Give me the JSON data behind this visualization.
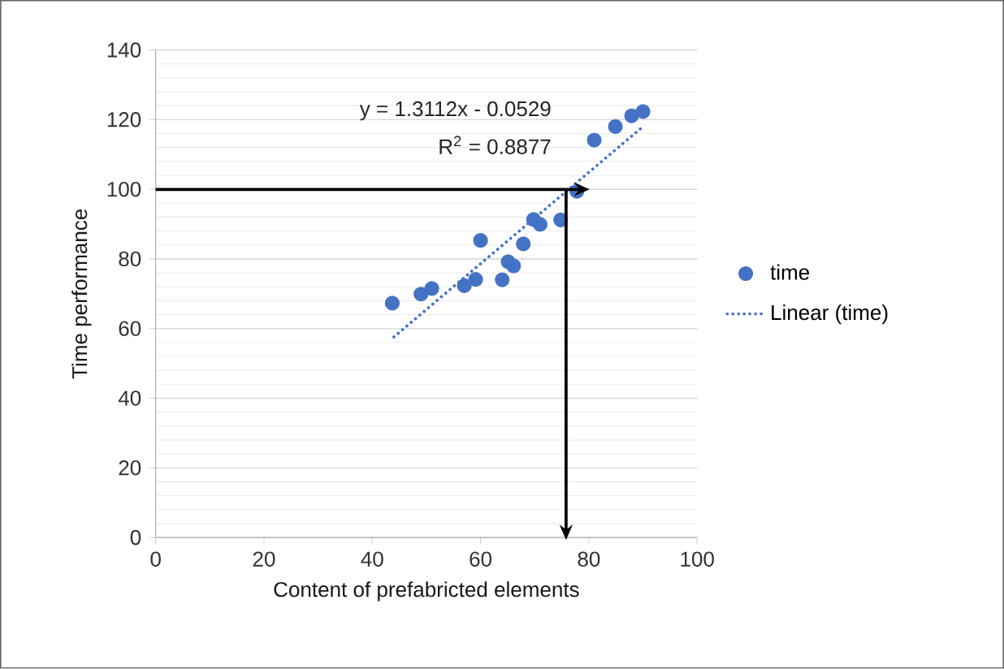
{
  "chart_data": {
    "type": "scatter",
    "xlabel": "Content of prefabricted elements",
    "ylabel": "Time performance",
    "series": [
      {
        "name": "time",
        "color": "#4472c4",
        "marker": "circle",
        "x": [
          43.7,
          49.0,
          51.0,
          57.0,
          59.1,
          60.0,
          64.0,
          65.1,
          66.1,
          67.9,
          69.8,
          71.0,
          74.8,
          77.8,
          81.0,
          84.9,
          87.9,
          90.0
        ],
        "values": [
          67.3,
          69.9,
          71.5,
          72.3,
          74.1,
          85.3,
          74.0,
          79.2,
          78.0,
          84.3,
          91.3,
          89.9,
          91.2,
          99.4,
          114.1,
          118.0,
          121.1,
          122.3
        ]
      },
      {
        "name": "Linear (time)",
        "type": "line",
        "color": "#4472c4",
        "line_style": "dotted",
        "marker": "none",
        "x": [
          44,
          90
        ],
        "values": [
          57.6,
          118.0
        ]
      }
    ],
    "annotations": [
      "y = 1.3112x - 0.0529",
      "R$^{2}$ = 0.8877"
    ],
    "xlim": [
      0,
      100
    ],
    "xticks": [
      0,
      20,
      40,
      60,
      80,
      100
    ],
    "ylim": [
      0,
      140
    ],
    "yticks": [
      0,
      20,
      40,
      60,
      80,
      100,
      120,
      140
    ],
    "grid": "y",
    "legend": "right"
  }
}
